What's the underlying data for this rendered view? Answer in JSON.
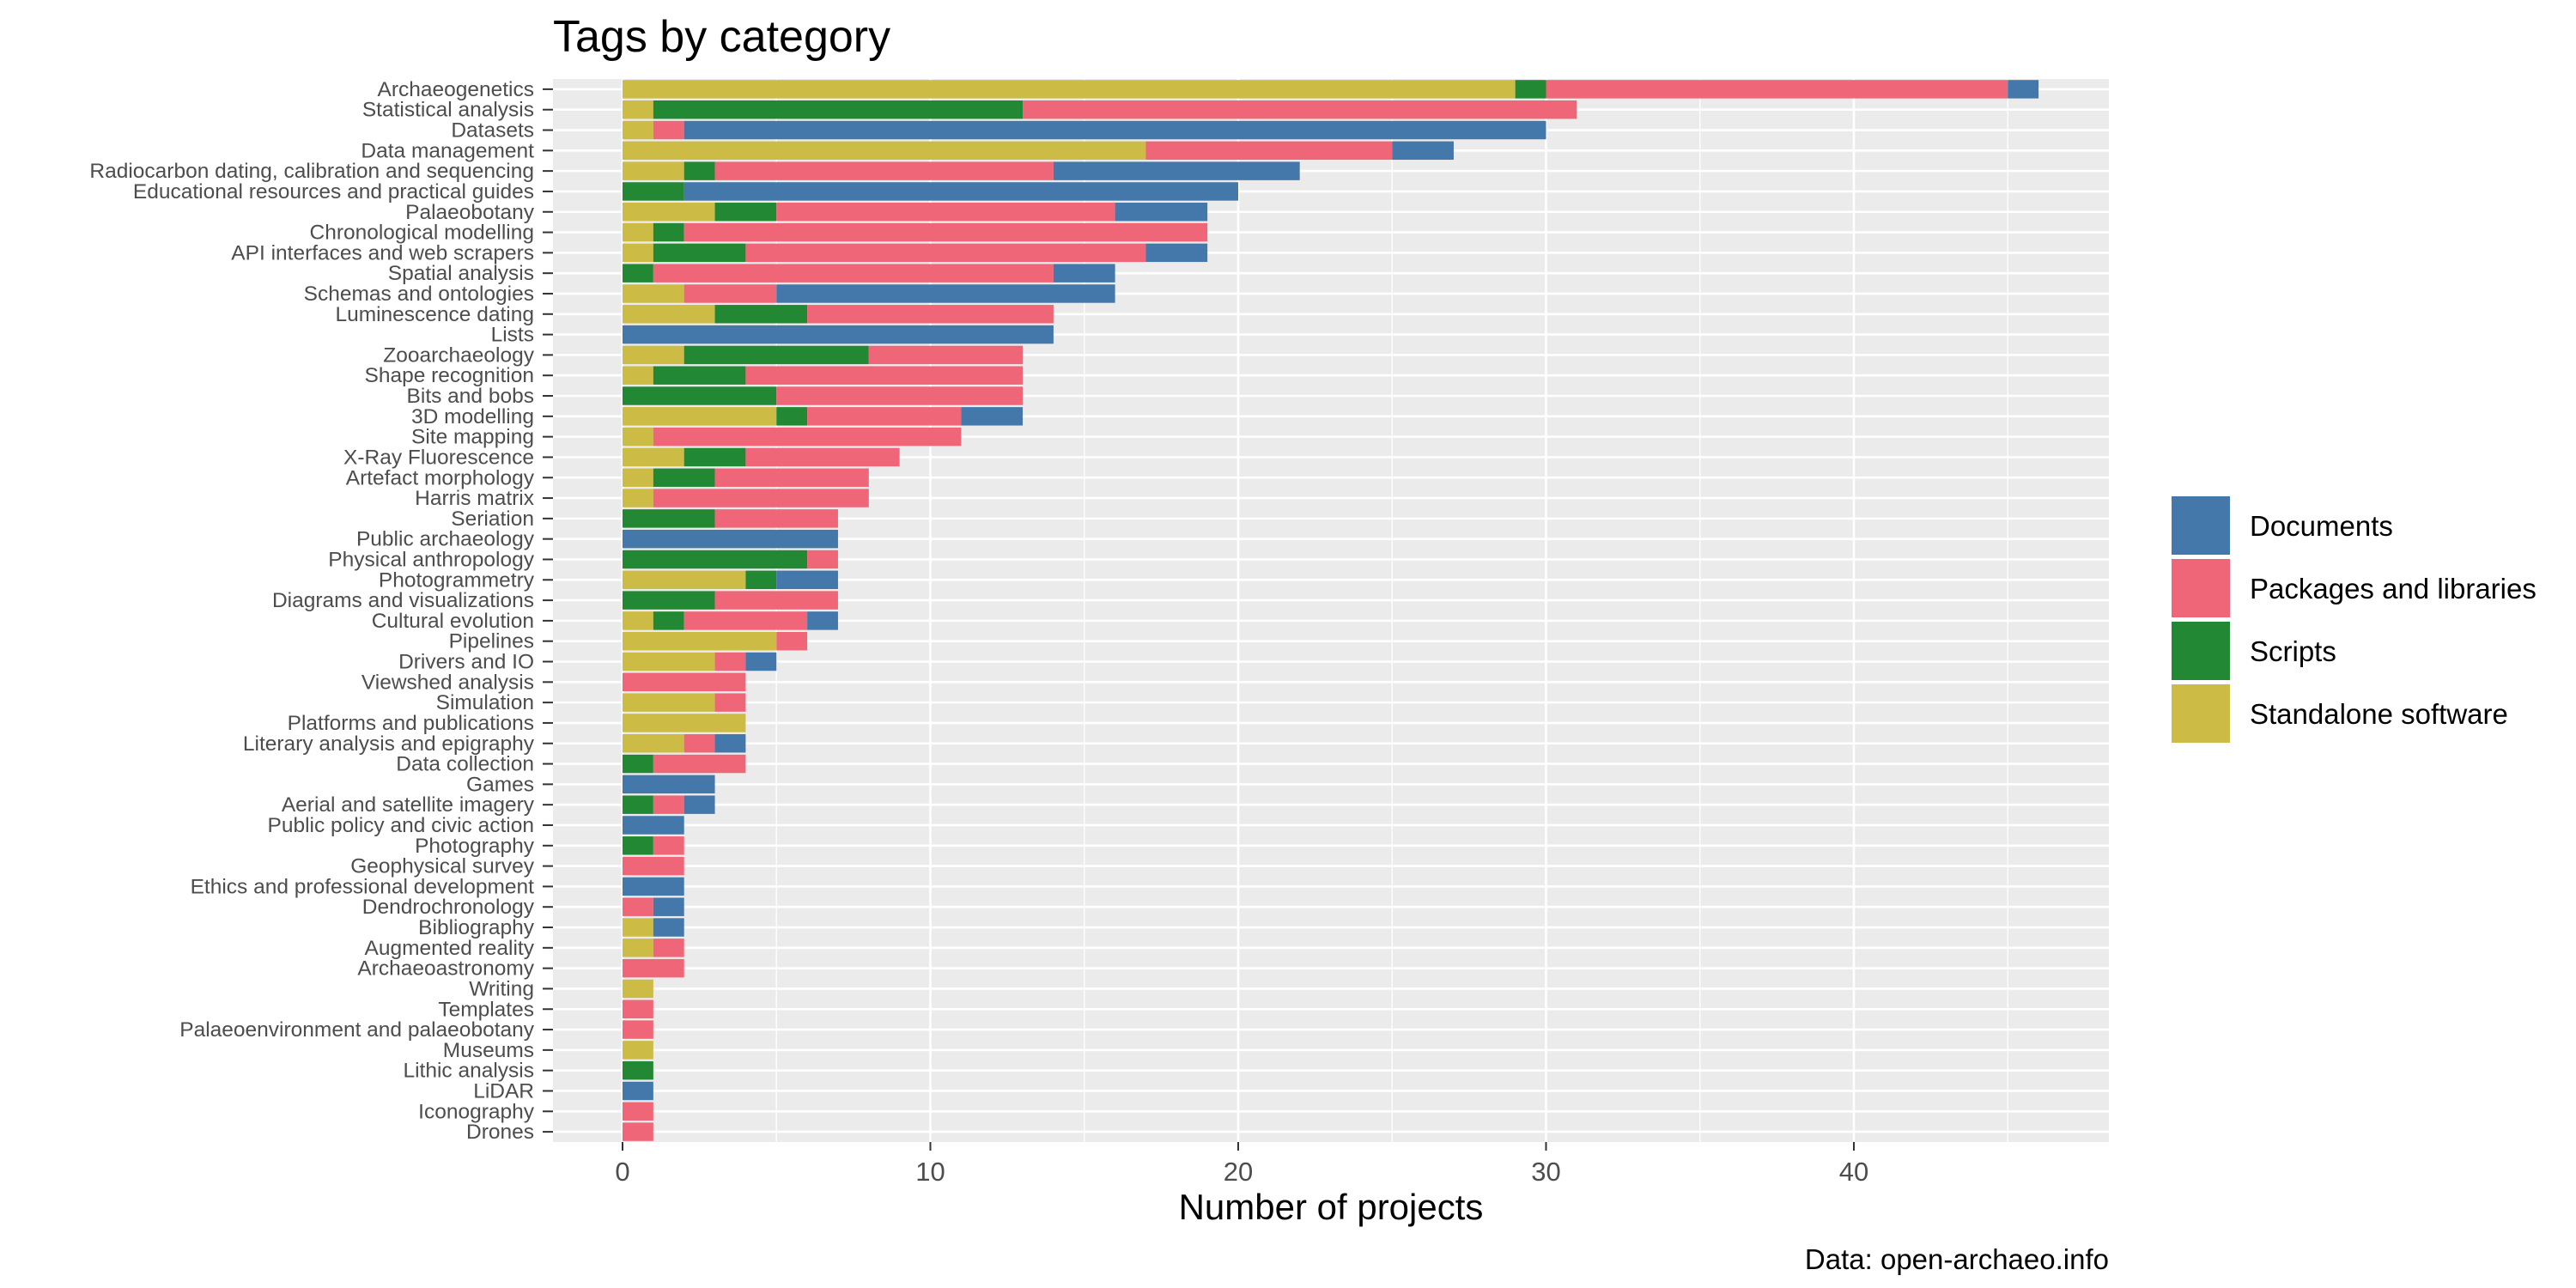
{
  "chart_data": {
    "type": "bar",
    "orientation": "horizontal",
    "stacked": true,
    "title": "Tags by category",
    "xlabel": "Number of projects",
    "ylabel": "",
    "caption": "Data: open-archaeo.info",
    "xlim": [
      0,
      48
    ],
    "x_ticks": [
      0,
      10,
      20,
      30,
      40
    ],
    "grid": true,
    "legend_position": "right",
    "stack_order": [
      "Standalone software",
      "Scripts",
      "Packages and libraries",
      "Documents"
    ],
    "legend": [
      {
        "name": "Documents",
        "color": "#4477AA"
      },
      {
        "name": "Packages and libraries",
        "color": "#EE6677"
      },
      {
        "name": "Scripts",
        "color": "#228833"
      },
      {
        "name": "Standalone software",
        "color": "#CCBB44"
      }
    ],
    "categories": [
      "Archaeogenetics",
      "Statistical analysis",
      "Datasets",
      "Data management",
      "Radiocarbon dating, calibration and sequencing",
      "Educational resources and practical guides",
      "Palaeobotany",
      "Chronological modelling",
      "API interfaces and web scrapers",
      "Spatial analysis",
      "Schemas and ontologies",
      "Luminescence dating",
      "Lists",
      "Zooarchaeology",
      "Shape recognition",
      "Bits and bobs",
      "3D modelling",
      "Site mapping",
      "X-Ray Fluorescence",
      "Artefact morphology",
      "Harris matrix",
      "Seriation",
      "Public archaeology",
      "Physical anthropology",
      "Photogrammetry",
      "Diagrams and visualizations",
      "Cultural evolution",
      "Pipelines",
      "Drivers and IO",
      "Viewshed analysis",
      "Simulation",
      "Platforms and publications",
      "Literary analysis and epigraphy",
      "Data collection",
      "Games",
      "Aerial and satellite imagery",
      "Public policy and civic action",
      "Photography",
      "Geophysical survey",
      "Ethics and professional development",
      "Dendrochronology",
      "Bibliography",
      "Augmented reality",
      "Archaeoastronomy",
      "Writing",
      "Templates",
      "Palaeoenvironment and palaeobotany",
      "Museums",
      "Lithic analysis",
      "LiDAR",
      "Iconography",
      "Drones"
    ],
    "series": [
      {
        "name": "Standalone software",
        "values": [
          29,
          1,
          1,
          17,
          2,
          0,
          3,
          1,
          1,
          0,
          2,
          3,
          0,
          2,
          1,
          0,
          5,
          1,
          2,
          1,
          1,
          0,
          0,
          0,
          4,
          0,
          1,
          5,
          3,
          0,
          3,
          4,
          2,
          0,
          0,
          0,
          0,
          0,
          0,
          0,
          0,
          1,
          1,
          0,
          1,
          0,
          0,
          1,
          0,
          0,
          0,
          0
        ]
      },
      {
        "name": "Scripts",
        "values": [
          1,
          12,
          0,
          0,
          1,
          2,
          2,
          1,
          3,
          1,
          0,
          3,
          0,
          6,
          3,
          5,
          1,
          0,
          2,
          2,
          0,
          3,
          0,
          6,
          1,
          3,
          1,
          0,
          0,
          0,
          0,
          0,
          0,
          1,
          0,
          1,
          0,
          1,
          0,
          0,
          0,
          0,
          0,
          0,
          0,
          0,
          0,
          0,
          1,
          0,
          0,
          0
        ]
      },
      {
        "name": "Packages and libraries",
        "values": [
          15,
          18,
          1,
          8,
          11,
          0,
          11,
          17,
          13,
          13,
          3,
          8,
          0,
          5,
          9,
          8,
          5,
          10,
          5,
          5,
          7,
          4,
          0,
          1,
          0,
          4,
          4,
          1,
          1,
          4,
          1,
          0,
          1,
          3,
          0,
          1,
          0,
          1,
          2,
          0,
          1,
          0,
          1,
          2,
          0,
          1,
          1,
          0,
          0,
          0,
          1,
          1
        ]
      },
      {
        "name": "Documents",
        "values": [
          1,
          0,
          28,
          2,
          8,
          18,
          3,
          0,
          2,
          2,
          11,
          0,
          14,
          0,
          0,
          0,
          2,
          0,
          0,
          0,
          0,
          0,
          7,
          0,
          2,
          0,
          1,
          0,
          1,
          0,
          0,
          0,
          1,
          0,
          3,
          1,
          2,
          0,
          0,
          2,
          1,
          1,
          0,
          0,
          0,
          0,
          0,
          0,
          0,
          1,
          0,
          0
        ]
      }
    ]
  }
}
